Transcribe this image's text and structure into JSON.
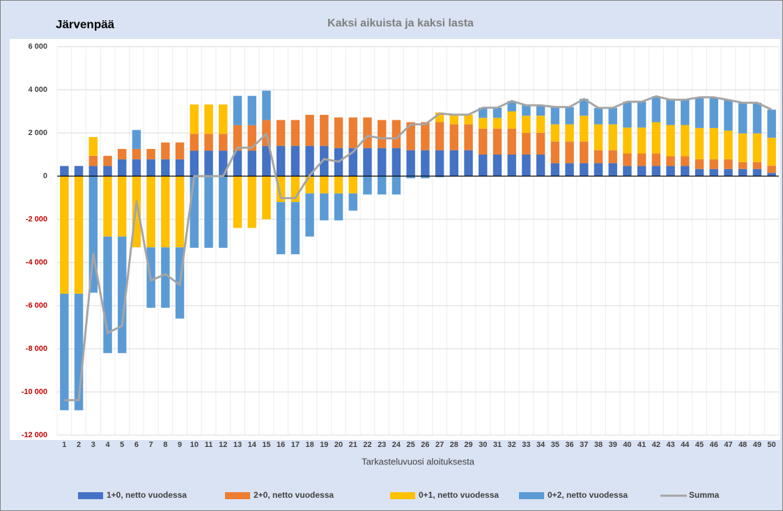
{
  "chart_data": {
    "type": "bar",
    "stacked": true,
    "heading": "Järvenpää",
    "title": "Kaksi aikuista ja kaksi lasta",
    "xlabel": "Tarkasteluvuosi aloituksesta",
    "categories": [
      "1",
      "2",
      "3",
      "4",
      "5",
      "6",
      "7",
      "8",
      "9",
      "10",
      "11",
      "12",
      "13",
      "14",
      "15",
      "16",
      "17",
      "18",
      "19",
      "20",
      "21",
      "22",
      "23",
      "24",
      "25",
      "26",
      "27",
      "28",
      "29",
      "30",
      "31",
      "32",
      "33",
      "34",
      "35",
      "36",
      "37",
      "38",
      "39",
      "40",
      "41",
      "42",
      "43",
      "44",
      "45",
      "46",
      "47",
      "48",
      "49",
      "50"
    ],
    "ylim": [
      -12000,
      6000
    ],
    "yticks": [
      {
        "value": -12000,
        "label": "-12 000"
      },
      {
        "value": -10000,
        "label": "-10 000"
      },
      {
        "value": -8000,
        "label": "-8 000"
      },
      {
        "value": -6000,
        "label": "-6 000"
      },
      {
        "value": -4000,
        "label": "-4 000"
      },
      {
        "value": -2000,
        "label": "-2 000"
      },
      0,
      {
        "value": 2000,
        "label": "2 000"
      },
      {
        "value": 4000,
        "label": "4 000"
      },
      {
        "value": 6000,
        "label": "6 000"
      }
    ],
    "grid": true,
    "negative_tick_color": "#c00000",
    "series": [
      {
        "name": "1+0, netto vuodessa",
        "color": "#4472c4",
        "values": [
          470,
          470,
          470,
          470,
          780,
          780,
          780,
          780,
          780,
          1180,
          1180,
          1180,
          1180,
          1180,
          1400,
          1400,
          1400,
          1400,
          1400,
          1300,
          1300,
          1300,
          1300,
          1300,
          1200,
          1200,
          1200,
          1200,
          1200,
          1000,
          1000,
          1000,
          1000,
          1000,
          600,
          600,
          600,
          600,
          600,
          470,
          470,
          470,
          470,
          470,
          330,
          330,
          330,
          330,
          330,
          150
        ]
      },
      {
        "name": "2+0, netto vuodessa",
        "color": "#ed7d31",
        "values": [
          0,
          0,
          470,
          470,
          480,
          480,
          480,
          780,
          780,
          780,
          780,
          780,
          1180,
          1180,
          1200,
          1200,
          1200,
          1440,
          1440,
          1420,
          1420,
          1420,
          1300,
          1300,
          1300,
          1300,
          1300,
          1200,
          1200,
          1200,
          1200,
          1200,
          1000,
          1000,
          1000,
          1000,
          1000,
          600,
          600,
          580,
          580,
          580,
          450,
          450,
          450,
          450,
          450,
          320,
          320,
          330
        ]
      },
      {
        "name": "0+1, netto vuodessa",
        "color": "#ffc000",
        "values": [
          -5450,
          -5450,
          870,
          -2800,
          -2800,
          -3300,
          -3300,
          -3300,
          -3300,
          1360,
          1360,
          1360,
          -2400,
          -2400,
          -2000,
          -1200,
          -1200,
          -800,
          -800,
          -800,
          -800,
          0,
          0,
          0,
          0,
          0,
          450,
          450,
          450,
          500,
          500,
          800,
          800,
          800,
          800,
          800,
          1200,
          1200,
          1200,
          1200,
          1200,
          1450,
          1450,
          1450,
          1450,
          1450,
          1330,
          1330,
          1330,
          1300
        ]
      },
      {
        "name": "0+2, netto vuodessa",
        "color": "#5b9bd5",
        "values": [
          -5400,
          -5400,
          -5400,
          -5400,
          -5400,
          880,
          -2800,
          -2800,
          -3300,
          -3320,
          -3320,
          -3320,
          1360,
          1360,
          1360,
          -2420,
          -2420,
          -2000,
          -1250,
          -1250,
          -800,
          -850,
          -850,
          -850,
          -100,
          -100,
          -50,
          0,
          0,
          470,
          470,
          480,
          480,
          480,
          800,
          800,
          780,
          760,
          760,
          1200,
          1200,
          1200,
          1170,
          1170,
          1420,
          1420,
          1420,
          1420,
          1420,
          1300
        ]
      },
      {
        "name": "Summa",
        "type": "line",
        "color": "#a5a5a5",
        "values": [
          -10380,
          -10380,
          -3590,
          -7260,
          -6940,
          -1160,
          -4840,
          -4540,
          -5040,
          0,
          0,
          0,
          1320,
          1320,
          1960,
          -1020,
          -1020,
          40,
          790,
          670,
          1120,
          1870,
          1750,
          1750,
          2400,
          2400,
          2900,
          2850,
          2850,
          3170,
          3170,
          3480,
          3280,
          3280,
          3200,
          3200,
          3580,
          3160,
          3160,
          3450,
          3450,
          3700,
          3540,
          3540,
          3650,
          3650,
          3530,
          3400,
          3400,
          3080
        ]
      }
    ]
  }
}
